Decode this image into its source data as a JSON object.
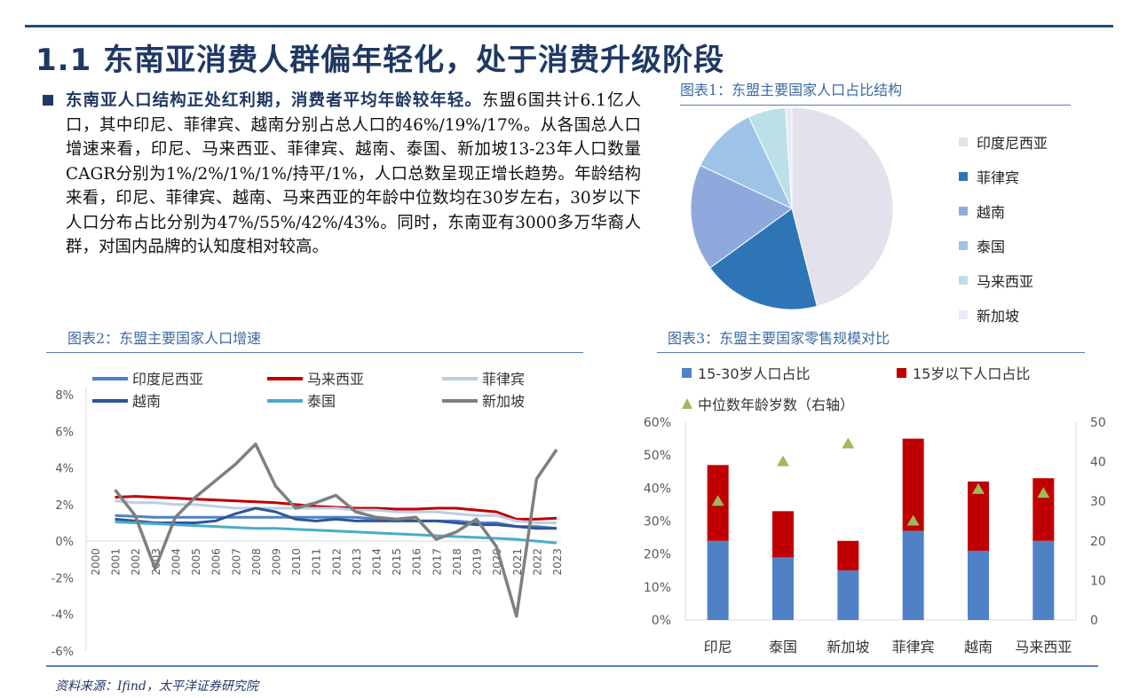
{
  "title": "1.1 东南亚消费人群偏年轻化，处于消费升级阶段",
  "paragraph": {
    "bold_lead": "东南亚人口结构正处红利期，消费者平均年龄较年轻。",
    "body": "东盟6国共计6.1亿人口，其中印尼、菲律宾、越南分别占总人口的46%/19%/17%。从各国总人口增速来看，印尼、马来西亚、菲律宾、越南、泰国、新加坡13-23年人口数量CAGR分别为1%/2%/1%/1%/持平/1%，人口总数呈现正增长趋势。年龄结构来看，印尼、菲律宾、越南、马来西亚的年龄中位数均在30岁左右，30岁以下人口分布占比分别为47%/55%/42%/43%。同时，东南亚有3000多万华裔人群，对国内品牌的认知度相对较高。"
  },
  "figure1": {
    "title": "图表1：东盟主要国家人口占比结构"
  },
  "figure2": {
    "title": "图表2：东盟主要国家人口增速"
  },
  "figure3": {
    "title": "图表3：东盟主要国家零售规模对比"
  },
  "source": "资料来源：Ifind，太平洋证券研究院",
  "chart_data": [
    {
      "type": "pie",
      "labels": [
        "印度尼西亚",
        "菲律宾",
        "越南",
        "泰国",
        "马来西亚",
        "新加坡"
      ],
      "values": [
        46,
        19,
        17,
        11,
        6,
        1
      ],
      "colors": [
        "#e3e1ec",
        "#2e75b6",
        "#8fa9dc",
        "#9dc3e6",
        "#bde0e8",
        "#e6ebf5"
      ],
      "legend_position": "right"
    },
    {
      "type": "line",
      "x": [
        "2000",
        "2001",
        "2002",
        "2003",
        "2004",
        "2005",
        "2006",
        "2007",
        "2008",
        "2009",
        "2010",
        "2011",
        "2012",
        "2013",
        "2014",
        "2015",
        "2016",
        "2017",
        "2018",
        "2019",
        "2020",
        "2021",
        "2022",
        "2023"
      ],
      "ylim": [
        -6,
        8
      ],
      "yticks": [
        "8%",
        "6%",
        "4%",
        "2%",
        "0%",
        "-2%",
        "-4%",
        "-6%"
      ],
      "legend_position": "top",
      "series": [
        {
          "name": "印度尼西亚",
          "color": "#4f81c7",
          "values": [
            null,
            1.4,
            1.35,
            1.3,
            1.3,
            1.3,
            1.3,
            1.3,
            1.3,
            1.3,
            1.3,
            1.3,
            1.3,
            1.3,
            1.2,
            1.2,
            1.1,
            1.1,
            1.1,
            1.0,
            1.0,
            0.8,
            0.8,
            0.7
          ]
        },
        {
          "name": "马来西亚",
          "color": "#c00000",
          "values": [
            null,
            2.4,
            2.45,
            2.4,
            2.35,
            2.3,
            2.25,
            2.2,
            2.15,
            2.1,
            2.0,
            1.9,
            1.85,
            1.8,
            1.8,
            1.75,
            1.75,
            1.8,
            1.8,
            1.7,
            1.6,
            1.2,
            1.2,
            1.25
          ]
        },
        {
          "name": "菲律宾",
          "color": "#bccde6",
          "values": [
            null,
            2.2,
            2.1,
            2.1,
            2.0,
            2.0,
            1.9,
            1.8,
            1.8,
            1.8,
            1.8,
            1.8,
            1.8,
            1.7,
            1.7,
            1.6,
            1.6,
            1.6,
            1.5,
            1.4,
            1.4,
            1.1,
            1.0,
            1.0
          ]
        },
        {
          "name": "越南",
          "color": "#2f5597",
          "values": [
            null,
            1.2,
            1.1,
            1.0,
            1.0,
            1.0,
            1.1,
            1.5,
            1.8,
            1.6,
            1.2,
            1.1,
            1.2,
            1.1,
            1.1,
            1.1,
            1.1,
            1.1,
            1.0,
            0.9,
            0.9,
            0.8,
            0.7,
            0.7
          ]
        },
        {
          "name": "泰国",
          "color": "#4bacc6",
          "values": [
            null,
            1.05,
            1.0,
            0.95,
            0.9,
            0.85,
            0.8,
            0.75,
            0.7,
            0.7,
            0.65,
            0.6,
            0.55,
            0.5,
            0.45,
            0.4,
            0.35,
            0.3,
            0.25,
            0.2,
            0.15,
            0.1,
            0.0,
            -0.1
          ]
        },
        {
          "name": "新加坡",
          "color": "#7f7f7f",
          "values": [
            null,
            2.8,
            1.4,
            -1.5,
            1.3,
            2.4,
            3.3,
            4.2,
            5.3,
            3.0,
            1.8,
            2.1,
            2.5,
            1.6,
            1.3,
            1.2,
            1.3,
            0.1,
            0.5,
            1.2,
            -0.3,
            -4.1,
            3.4,
            5.0
          ]
        }
      ]
    },
    {
      "type": "bar",
      "stacked": true,
      "categories": [
        "印尼",
        "泰国",
        "新加坡",
        "菲律宾",
        "越南",
        "马来西亚"
      ],
      "ylim": [
        0,
        60
      ],
      "y2lim": [
        0,
        50
      ],
      "yticks": [
        "60%",
        "50%",
        "40%",
        "30%",
        "20%",
        "10%",
        "0%"
      ],
      "y2ticks": [
        "50",
        "40",
        "30",
        "20",
        "10",
        "0"
      ],
      "series": [
        {
          "name": "15-30岁人口占比",
          "color": "#4f81c7",
          "values": [
            24,
            19,
            15,
            27,
            21,
            24
          ]
        },
        {
          "name": "15岁以下人口占比",
          "color": "#c00000",
          "values": [
            23,
            14,
            9,
            28,
            21,
            19
          ]
        },
        {
          "name": "中位数年龄岁数（右轴）",
          "color": "#9bbb59",
          "marker": "triangle",
          "axis": "right",
          "values": [
            30,
            40,
            44.5,
            25,
            33,
            32
          ]
        }
      ]
    }
  ]
}
